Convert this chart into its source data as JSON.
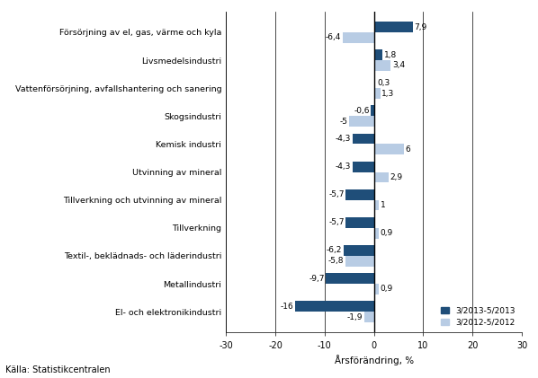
{
  "categories": [
    "El- och elektronikindustri",
    "Metallindustri",
    "Textil-, beklädnads- och läderindustri",
    "Tillverkning",
    "Tillverkning och utvinning av mineral",
    "Utvinning av mineral",
    "Kemisk industri",
    "Skogsindustri",
    "Vattenförsörjning, avfallshantering och sanering",
    "Livsmedelsindustri",
    "Försörjning av el, gas, värme och kyla"
  ],
  "series_2013": [
    -16.0,
    -9.7,
    -6.2,
    -5.7,
    -5.7,
    -4.3,
    -4.3,
    -0.6,
    0.3,
    1.8,
    7.9
  ],
  "series_2012": [
    -1.9,
    0.9,
    -5.8,
    0.9,
    1.0,
    2.9,
    6.0,
    -5.0,
    1.3,
    3.4,
    -6.4
  ],
  "color_2013": "#1f4e79",
  "color_2012": "#b8cce4",
  "xlabel": "Årsförändring, %",
  "legend_2013": "3/2013-5/2013",
  "legend_2012": "3/2012-5/2012",
  "xlim": [
    -30,
    30
  ],
  "xticks": [
    -30,
    -20,
    -10,
    0,
    10,
    20,
    30
  ],
  "source": "Källa: Statistikcentralen"
}
